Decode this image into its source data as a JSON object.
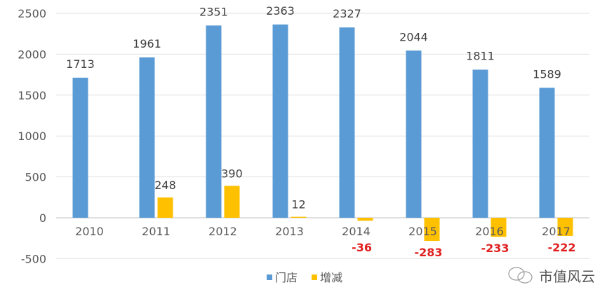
{
  "chart_data": {
    "type": "bar",
    "title": "",
    "xlabel": "",
    "ylabel": "",
    "categories": [
      "2010",
      "2011",
      "2012",
      "2013",
      "2014",
      "2015",
      "2016",
      "2017"
    ],
    "series": [
      {
        "name": "门店",
        "color": "#5B9BD5",
        "values": [
          1713,
          1961,
          2351,
          2363,
          2327,
          2044,
          1811,
          1589
        ]
      },
      {
        "name": "增减",
        "color": "#FFC000",
        "values": [
          null,
          248,
          390,
          12,
          -36,
          -283,
          -233,
          -222
        ]
      }
    ],
    "ylim": [
      -500,
      2500
    ],
    "yticks": [
      -500,
      0,
      500,
      1000,
      1500,
      2000,
      2500
    ],
    "grid": true,
    "legend_position": "bottom",
    "negative_label_color": "#E02020"
  },
  "watermark": {
    "text": "市值风云",
    "icon": "wechat-bubble-icon"
  }
}
